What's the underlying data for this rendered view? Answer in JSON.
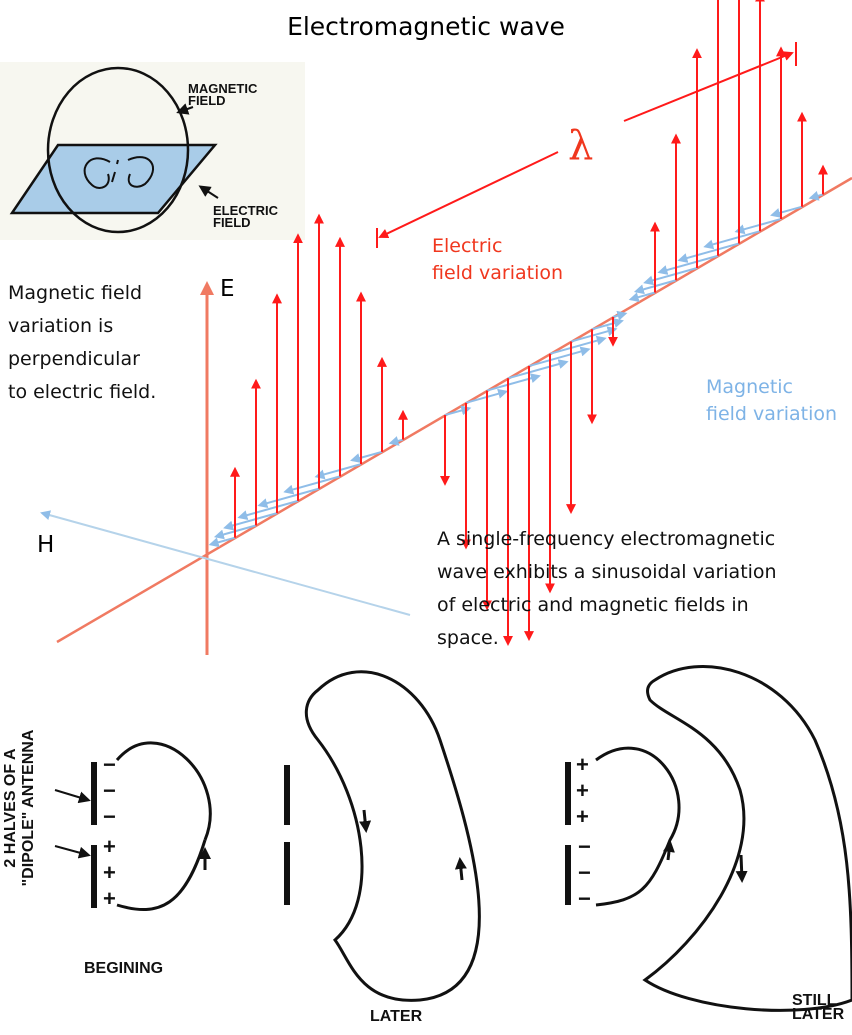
{
  "title": "Electromagnetic wave",
  "inset": {
    "magnetic_1": "MAGNETIC",
    "magnetic_2": "FIELD",
    "electric_1": "ELECTRIC",
    "electric_2": "FIELD"
  },
  "left_note": [
    "Magnetic field",
    "variation is",
    "perpendicular",
    "to electric field."
  ],
  "axes": {
    "e": "E",
    "h": "H"
  },
  "wavelength_symbol": "λ",
  "electric_label": [
    "Electric",
    "field variation"
  ],
  "magnetic_label": [
    "Magnetic",
    "field variation"
  ],
  "caption": [
    "A single-frequency electromagnetic",
    "wave exhibits a sinusoidal variation",
    "of electric and magnetic fields in",
    "space."
  ],
  "dipole": [
    "2 HALVES OF A",
    "\"DIPOLE\" ANTENNA"
  ],
  "stages": {
    "beginning": "BEGINING",
    "later": "LATER",
    "still_1": "STILL",
    "still_2": "LATER"
  },
  "signs": {
    "plus": "+",
    "minus": "−"
  },
  "colors": {
    "electric": "#ff1a1a",
    "magnetic": "#8fbde8",
    "axis": "#f07a62",
    "electric_text": "#f0371e",
    "magnetic_text": "#7eb3e6"
  }
}
